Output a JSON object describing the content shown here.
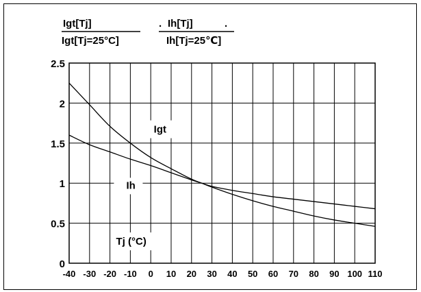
{
  "header": {
    "ratio1": {
      "numerator": "Igt[Tj]",
      "denominator": "Igt[Tj=25°C]"
    },
    "ratio2": {
      "prefix": ".",
      "numerator": "Ih[Tj]",
      "suffix": ".",
      "denominator": "Ih[Tj=25℃]"
    }
  },
  "chart_data": {
    "type": "line",
    "title": "",
    "xlabel": "Tj (°C)",
    "ylabel": "",
    "xlim": [
      -40,
      110
    ],
    "ylim": [
      0,
      2.5
    ],
    "grid": true,
    "x_ticks": [
      "-40",
      "-30",
      "-20",
      "-10",
      "0",
      "10",
      "20",
      "30",
      "40",
      "50",
      "60",
      "70",
      "80",
      "90",
      "100",
      "110"
    ],
    "y_ticks": [
      "0",
      "0.5",
      "1",
      "1.5",
      "2",
      "2.5"
    ],
    "series": [
      {
        "name": "Igt",
        "x": [
          -40,
          -30,
          -20,
          -10,
          0,
          10,
          20,
          25,
          30,
          40,
          50,
          60,
          70,
          80,
          90,
          100,
          110
        ],
        "values": [
          2.25,
          1.98,
          1.71,
          1.5,
          1.32,
          1.18,
          1.05,
          1.0,
          0.95,
          0.86,
          0.78,
          0.71,
          0.65,
          0.59,
          0.54,
          0.5,
          0.46
        ]
      },
      {
        "name": "Ih",
        "x": [
          -40,
          -30,
          -20,
          -10,
          0,
          10,
          20,
          25,
          30,
          40,
          50,
          60,
          70,
          80,
          90,
          100,
          110
        ],
        "values": [
          1.6,
          1.48,
          1.39,
          1.3,
          1.22,
          1.13,
          1.04,
          1.0,
          0.96,
          0.91,
          0.87,
          0.83,
          0.8,
          0.77,
          0.74,
          0.71,
          0.68
        ]
      }
    ],
    "annotations": [
      {
        "text": "Igt",
        "x": 1.5,
        "y": 1.63
      },
      {
        "text": "Ih",
        "x": -12,
        "y": 0.93
      }
    ]
  }
}
